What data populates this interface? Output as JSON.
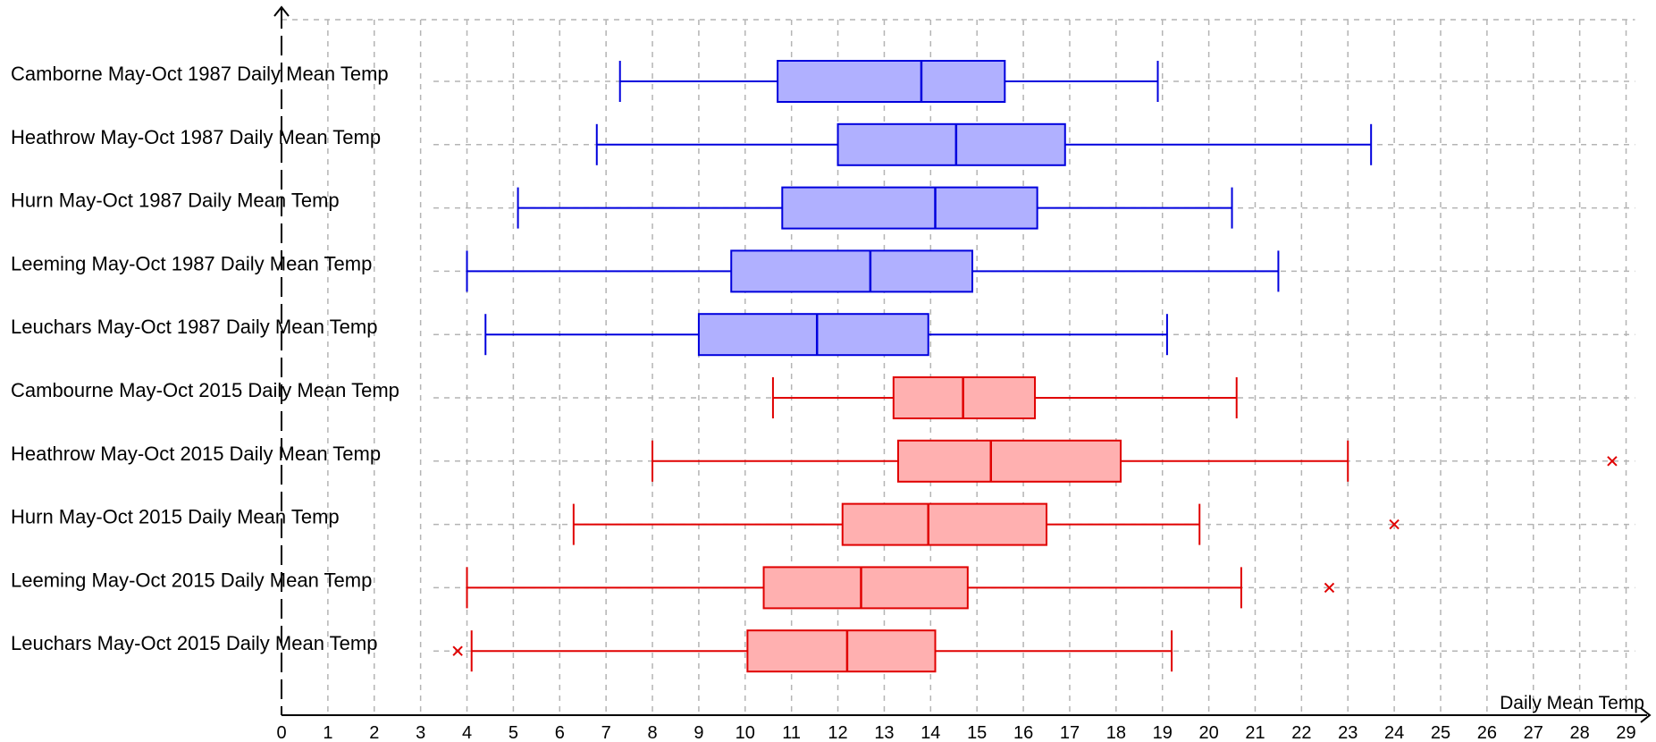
{
  "chart_data": {
    "type": "boxplot",
    "xlabel": "Daily Mean Temp",
    "xlim": [
      0,
      29
    ],
    "x_ticks": [
      0,
      1,
      2,
      3,
      4,
      5,
      6,
      7,
      8,
      9,
      10,
      11,
      12,
      13,
      14,
      15,
      16,
      17,
      18,
      19,
      20,
      21,
      22,
      23,
      24,
      25,
      26,
      27,
      28,
      29
    ],
    "grid": true,
    "colors": {
      "1987": "#0000dd",
      "1987_fill": "#b0b0ff",
      "2015": "#e00000",
      "2015_fill": "#ffb0b0",
      "grid": "#b4b4b4"
    },
    "boxes": [
      {
        "label": "Camborne May-Oct 1987 Daily Mean Temp",
        "group": "1987",
        "min": 7.3,
        "q1": 10.7,
        "median": 13.8,
        "q3": 15.6,
        "max": 18.9,
        "outliers": []
      },
      {
        "label": "Heathrow May-Oct 1987 Daily Mean Temp",
        "group": "1987",
        "min": 6.8,
        "q1": 12.0,
        "median": 14.55,
        "q3": 16.9,
        "max": 23.5,
        "outliers": []
      },
      {
        "label": "Hurn May-Oct 1987 Daily Mean Temp",
        "group": "1987",
        "min": 5.1,
        "q1": 10.8,
        "median": 14.1,
        "q3": 16.3,
        "max": 20.5,
        "outliers": []
      },
      {
        "label": "Leeming May-Oct 1987 Daily Mean Temp",
        "group": "1987",
        "min": 4.0,
        "q1": 9.7,
        "median": 12.7,
        "q3": 14.9,
        "max": 21.5,
        "outliers": []
      },
      {
        "label": "Leuchars May-Oct 1987 Daily Mean Temp",
        "group": "1987",
        "min": 4.4,
        "q1": 9.0,
        "median": 11.55,
        "q3": 13.95,
        "max": 19.1,
        "outliers": []
      },
      {
        "label": "Cambourne May-Oct 2015 Daily Mean Temp",
        "group": "2015",
        "min": 10.6,
        "q1": 13.2,
        "median": 14.7,
        "q3": 16.25,
        "max": 20.6,
        "outliers": []
      },
      {
        "label": "Heathrow  May-Oct 2015 Daily Mean Temp",
        "group": "2015",
        "min": 8.0,
        "q1": 13.3,
        "median": 15.3,
        "q3": 18.1,
        "max": 23.0,
        "outliers": [
          28.7
        ]
      },
      {
        "label": "Hurn May-Oct 2015 Daily Mean Temp",
        "group": "2015",
        "min": 6.3,
        "q1": 12.1,
        "median": 13.95,
        "q3": 16.5,
        "max": 19.8,
        "outliers": [
          24.0
        ]
      },
      {
        "label": "Leeming May-Oct 2015 Daily Mean Temp",
        "group": "2015",
        "min": 4.0,
        "q1": 10.4,
        "median": 12.5,
        "q3": 14.8,
        "max": 20.7,
        "outliers": [
          22.6
        ]
      },
      {
        "label": "Leuchars May-Oct 2015 Daily Mean Temp",
        "group": "2015",
        "min": 4.1,
        "q1": 10.05,
        "median": 12.2,
        "q3": 14.1,
        "max": 19.2,
        "outliers": [
          3.8
        ]
      }
    ]
  }
}
